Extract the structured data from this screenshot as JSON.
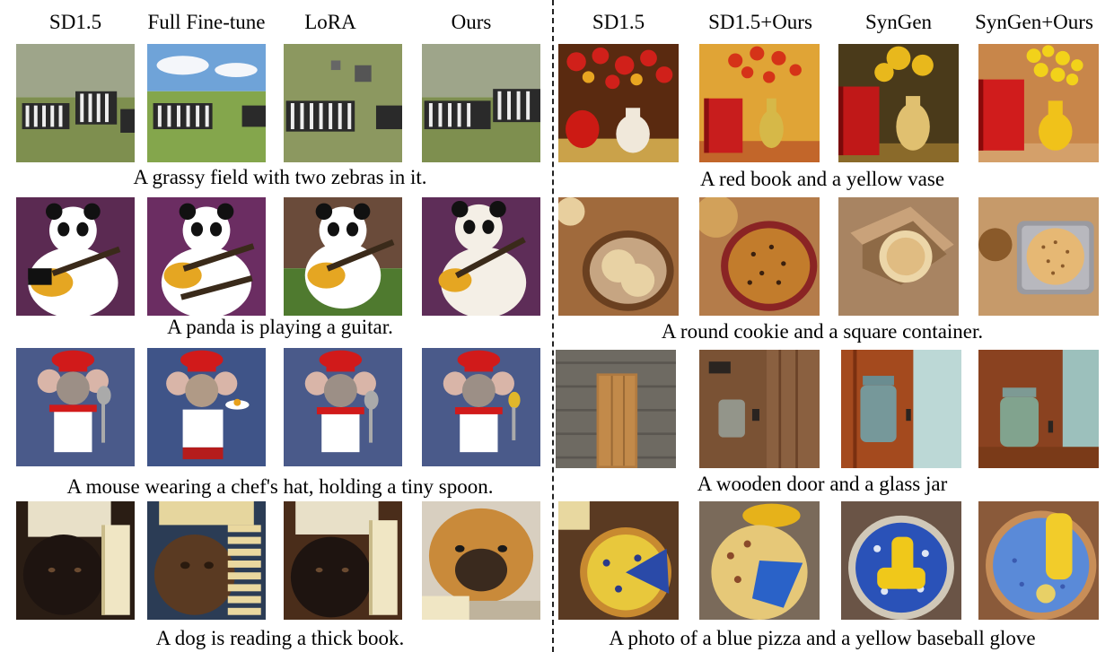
{
  "figure": {
    "left_panel": {
      "headers": [
        "SD1.5",
        "Full Fine-tune",
        "LoRA",
        "Ours"
      ],
      "captions": [
        "A grassy field with two zebras in it.",
        "A panda is playing a guitar.",
        "A mouse wearing a chef's hat, holding a tiny spoon.",
        "A dog is reading a thick book."
      ]
    },
    "right_panel": {
      "headers": [
        "SD1.5",
        "SD1.5+Ours",
        "SynGen",
        "SynGen+Ours"
      ],
      "captions": [
        "A red book and a yellow vase",
        "A round cookie and a square container.",
        "A wooden door and a glass jar",
        "A photo of a blue pizza and a yellow baseball glove"
      ]
    }
  }
}
